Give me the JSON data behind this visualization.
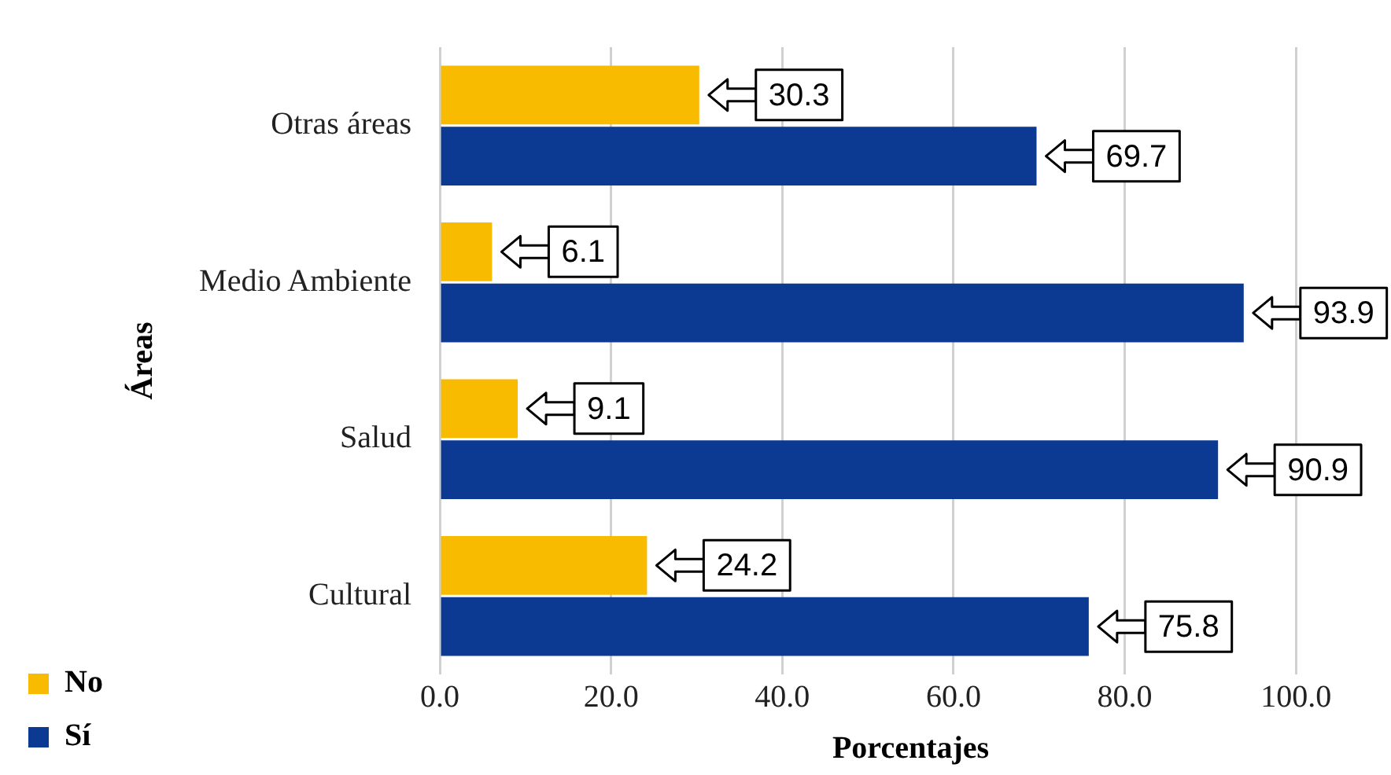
{
  "chart_data": {
    "type": "bar",
    "orientation": "horizontal",
    "xlabel": "Porcentajes",
    "ylabel": "Áreas",
    "categories": [
      "Otras áreas",
      "Medio Ambiente",
      "Salud",
      "Cultural"
    ],
    "series": [
      {
        "name": "No",
        "color": "#f9bb00",
        "values": [
          30.3,
          6.1,
          9.1,
          24.2
        ]
      },
      {
        "name": "Sí",
        "color": "#0c3a92",
        "values": [
          69.7,
          93.9,
          90.9,
          75.8
        ]
      }
    ],
    "xlim": [
      0,
      110
    ],
    "xticks": [
      {
        "value": 0,
        "label": "0.0"
      },
      {
        "value": 20,
        "label": "20.0"
      },
      {
        "value": 40,
        "label": "40.0"
      },
      {
        "value": 60,
        "label": "60.0"
      },
      {
        "value": 80,
        "label": "80.0"
      },
      {
        "value": 100,
        "label": "100.0"
      }
    ],
    "grid": "x",
    "legend": "bottom left",
    "data_labels": true
  }
}
